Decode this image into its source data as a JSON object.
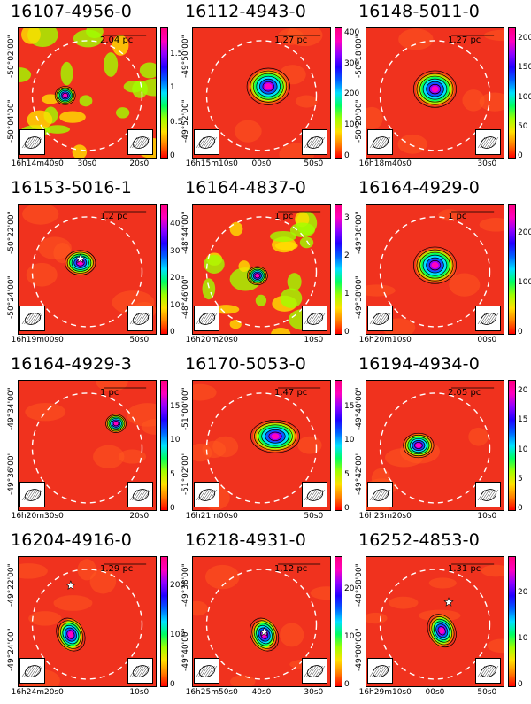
{
  "figure": {
    "panels": [
      {
        "title": "16107-4956-0",
        "scale": "2.04 pc",
        "cbar_ticks": [
          "0",
          "0.5",
          "1",
          "1.5"
        ],
        "cbar_max": 1.9,
        "x_ticks": [
          "16h14m40s0",
          "30s0",
          "20s0"
        ],
        "y_ticks": [
          "-50°02'00\"",
          "-50°04'00\""
        ],
        "sources": [
          {
            "cx": 0.34,
            "cy": 0.52,
            "peak": 1.7,
            "size": "small"
          }
        ],
        "star": null,
        "noisy": true
      },
      {
        "title": "16112-4943-0",
        "scale": "1.27 pc",
        "cbar_ticks": [
          "0",
          "100",
          "200",
          "300",
          "400"
        ],
        "cbar_max": 420,
        "x_ticks": [
          "16h15m10s0",
          "00s0",
          "50s0"
        ],
        "y_ticks": [
          "-49°50'00\"",
          "-49°52'00\""
        ],
        "sources": [
          {
            "cx": 0.55,
            "cy": 0.45,
            "peak": 400,
            "size": "large"
          }
        ],
        "star": null,
        "noisy": false
      },
      {
        "title": "16148-5011-0",
        "scale": "1.27 pc",
        "cbar_ticks": [
          "0",
          "50",
          "100",
          "150",
          "200"
        ],
        "cbar_max": 220,
        "x_ticks": [
          "16h18m40s0",
          "30s0"
        ],
        "y_ticks": [
          "-50°18'00\"",
          "-50°20'00\""
        ],
        "sources": [
          {
            "cx": 0.5,
            "cy": 0.47,
            "peak": 200,
            "size": "large"
          }
        ],
        "star": null,
        "noisy": false
      },
      {
        "title": "16153-5016-1",
        "scale": "1.2 pc",
        "cbar_ticks": [
          "0",
          "10",
          "20",
          "30",
          "40"
        ],
        "cbar_max": 48,
        "x_ticks": [
          "16h19m00s0",
          "50s0"
        ],
        "y_ticks": [
          "-50°22'00\"",
          "-50°24'00\""
        ],
        "sources": [
          {
            "cx": 0.45,
            "cy": 0.45,
            "peak": 40,
            "size": "medium"
          }
        ],
        "star": {
          "cx": 0.45,
          "cy": 0.42
        },
        "noisy": false
      },
      {
        "title": "16164-4837-0",
        "scale": "1 pc",
        "cbar_ticks": [
          "0",
          "1",
          "2",
          "3"
        ],
        "cbar_max": 3.4,
        "x_ticks": [
          "16h20m20s0",
          "10s0"
        ],
        "y_ticks": [
          "-48°44'00\"",
          "-48°46'00\""
        ],
        "sources": [
          {
            "cx": 0.47,
            "cy": 0.55,
            "peak": 3,
            "size": "small"
          }
        ],
        "star": null,
        "noisy": true
      },
      {
        "title": "16164-4929-0",
        "scale": "1 pc",
        "cbar_ticks": [
          "0",
          "100",
          "200"
        ],
        "cbar_max": 260,
        "x_ticks": [
          "16h20m10s0",
          "00s0"
        ],
        "y_ticks": [
          "-49°36'00\"",
          "-49°38'00\""
        ],
        "sources": [
          {
            "cx": 0.5,
            "cy": 0.47,
            "peak": 240,
            "size": "large"
          }
        ],
        "star": null,
        "noisy": false
      },
      {
        "title": "16164-4929-3",
        "scale": "1 pc",
        "cbar_ticks": [
          "0",
          "5",
          "10",
          "15"
        ],
        "cbar_max": 19,
        "x_ticks": [
          "16h20m30s0",
          "20s0"
        ],
        "y_ticks": [
          "-49°34'00\"",
          "-49°36'00\""
        ],
        "sources": [
          {
            "cx": 0.71,
            "cy": 0.33,
            "peak": 12,
            "size": "small"
          }
        ],
        "star": null,
        "noisy": false
      },
      {
        "title": "16170-5053-0",
        "scale": "1.47 pc",
        "cbar_ticks": [
          "0",
          "5",
          "10",
          "15"
        ],
        "cbar_max": 19,
        "x_ticks": [
          "16h21m00s0",
          "50s0"
        ],
        "y_ticks": [
          "-51°00'00\"",
          "-51°02'00\""
        ],
        "sources": [
          {
            "cx": 0.6,
            "cy": 0.43,
            "peak": 17,
            "size": "extended"
          }
        ],
        "star": null,
        "noisy": false
      },
      {
        "title": "16194-4934-0",
        "scale": "2.05 pc",
        "cbar_ticks": [
          "0",
          "5",
          "10",
          "15",
          "20"
        ],
        "cbar_max": 22,
        "x_ticks": [
          "16h23m20s0",
          "10s0"
        ],
        "y_ticks": [
          "-49°40'00\"",
          "-49°42'00\""
        ],
        "sources": [
          {
            "cx": 0.38,
            "cy": 0.5,
            "peak": 20,
            "size": "medium"
          }
        ],
        "star": null,
        "noisy": false
      },
      {
        "title": "16204-4916-0",
        "scale": "1.29 pc",
        "cbar_ticks": [
          "0",
          "100",
          "200"
        ],
        "cbar_max": 260,
        "x_ticks": [
          "16h24m20s0",
          "10s0"
        ],
        "y_ticks": [
          "-49°22'00\"",
          "-49°24'00\""
        ],
        "sources": [
          {
            "cx": 0.38,
            "cy": 0.6,
            "peak": 240,
            "size": "elongated"
          }
        ],
        "star": {
          "cx": 0.38,
          "cy": 0.22
        },
        "noisy": false
      },
      {
        "title": "16218-4931-0",
        "scale": "1.12 pc",
        "cbar_ticks": [
          "0",
          "10",
          "20"
        ],
        "cbar_max": 27,
        "x_ticks": [
          "16h25m50s0",
          "40s0",
          "30s0"
        ],
        "y_ticks": [
          "-49°38'00\"",
          "-49°40'00\""
        ],
        "sources": [
          {
            "cx": 0.52,
            "cy": 0.6,
            "peak": 24,
            "size": "elongated"
          }
        ],
        "star": {
          "cx": 0.52,
          "cy": 0.58
        },
        "noisy": false
      },
      {
        "title": "16252-4853-0",
        "scale": "1.31 pc",
        "cbar_ticks": [
          "0",
          "10",
          "20"
        ],
        "cbar_max": 28,
        "x_ticks": [
          "16h29m10s0",
          "00s0",
          "50s0"
        ],
        "y_ticks": [
          "-48°58'00\"",
          "-49°00'00\""
        ],
        "sources": [
          {
            "cx": 0.55,
            "cy": 0.57,
            "peak": 25,
            "size": "elongated"
          }
        ],
        "star": {
          "cx": 0.6,
          "cy": 0.35
        },
        "noisy": false
      }
    ]
  }
}
